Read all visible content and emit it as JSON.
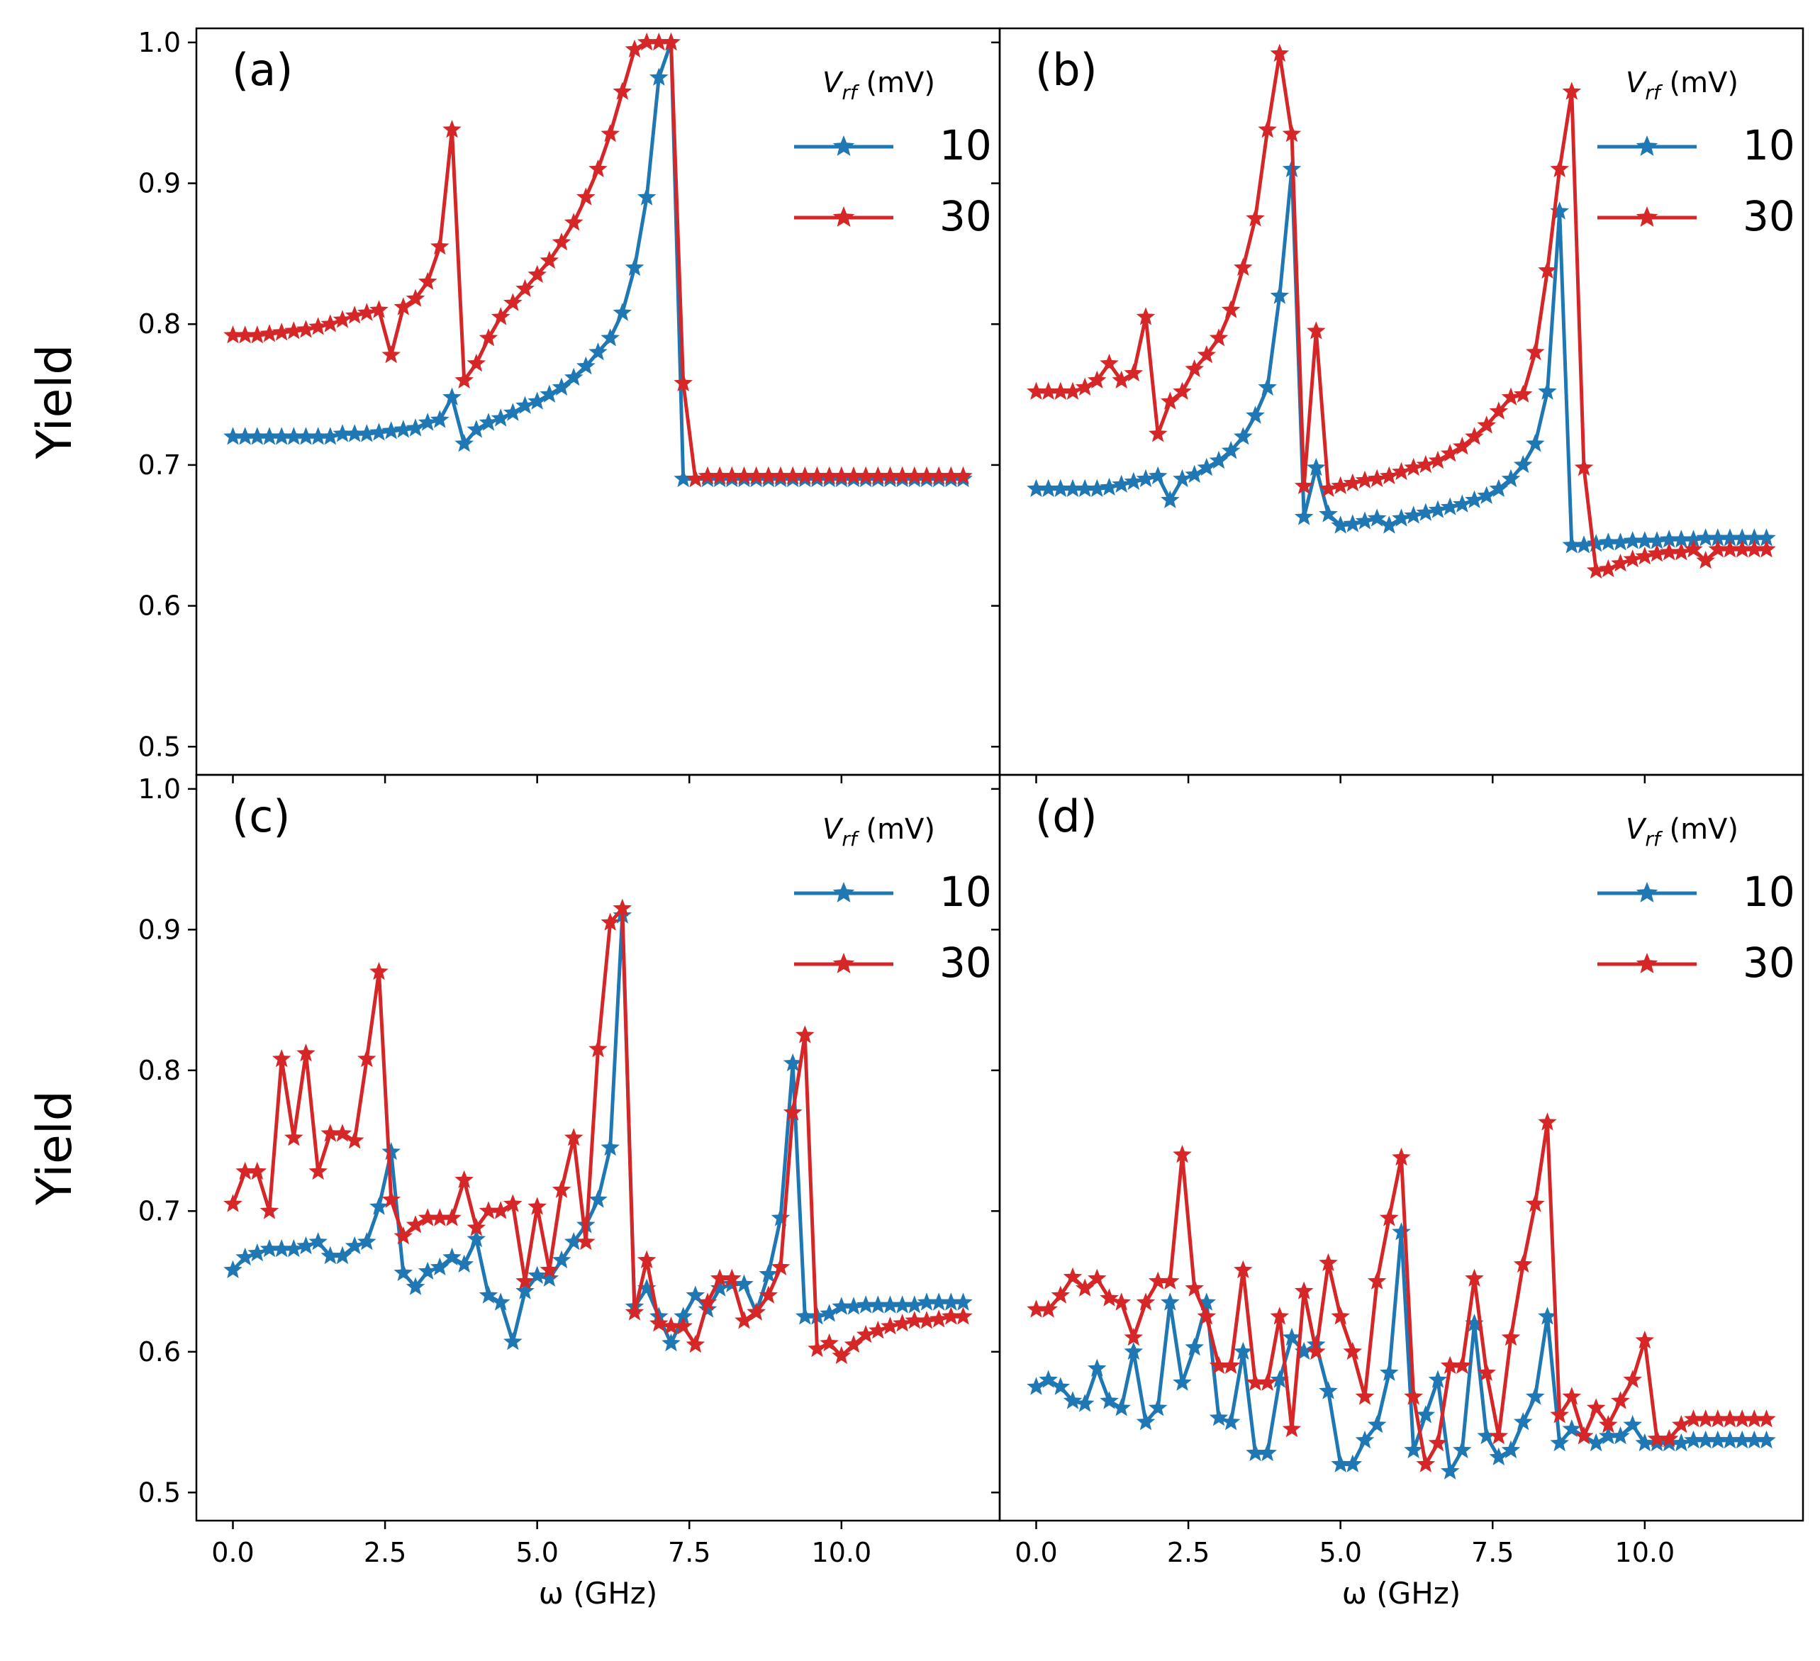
{
  "chart_data": {
    "type": "line",
    "xlabel": "ω (GHz)",
    "ylabel": "Yield",
    "xlim": [
      -0.6,
      12.6
    ],
    "ylim": [
      0.48,
      1.01
    ],
    "xticks": [
      "0.0",
      "2.5",
      "5.0",
      "7.5",
      "10.0"
    ],
    "yticks": [
      "0.5",
      "0.6",
      "0.7",
      "0.8",
      "0.9",
      "1.0"
    ],
    "legend_title_main": "V",
    "legend_title_sub": "rf",
    "legend_title_unit": "(mV)",
    "colors": {
      "10": "#1f77b4",
      "30": "#d62728"
    },
    "panels": [
      {
        "label": "(a)",
        "series": [
          {
            "name": "10",
            "color": "#1f77b4",
            "values": [
              0.72,
              0.72,
              0.72,
              0.72,
              0.72,
              0.72,
              0.72,
              0.72,
              0.72,
              0.722,
              0.722,
              0.722,
              0.723,
              0.724,
              0.725,
              0.726,
              0.73,
              0.732,
              0.748,
              0.715,
              0.725,
              0.73,
              0.733,
              0.737,
              0.742,
              0.745,
              0.75,
              0.755,
              0.762,
              0.77,
              0.78,
              0.79,
              0.808,
              0.84,
              0.89,
              0.975,
              1.0,
              0.69,
              0.69,
              0.69,
              0.69,
              0.69,
              0.69,
              0.69,
              0.69,
              0.69,
              0.69,
              0.69,
              0.69,
              0.69,
              0.69,
              0.69,
              0.69,
              0.69,
              0.69,
              0.69,
              0.69,
              0.69,
              0.69,
              0.69,
              0.69
            ]
          },
          {
            "name": "30",
            "color": "#d62728",
            "values": [
              0.792,
              0.792,
              0.792,
              0.793,
              0.794,
              0.795,
              0.796,
              0.798,
              0.8,
              0.803,
              0.806,
              0.808,
              0.81,
              0.778,
              0.812,
              0.818,
              0.83,
              0.855,
              0.938,
              0.76,
              0.772,
              0.79,
              0.805,
              0.815,
              0.825,
              0.835,
              0.845,
              0.858,
              0.872,
              0.89,
              0.91,
              0.935,
              0.965,
              0.995,
              1.0,
              1.0,
              1.0,
              0.758,
              0.69,
              0.692,
              0.692,
              0.692,
              0.692,
              0.692,
              0.692,
              0.692,
              0.692,
              0.692,
              0.692,
              0.692,
              0.692,
              0.692,
              0.692,
              0.692,
              0.692,
              0.692,
              0.692,
              0.692,
              0.692,
              0.692,
              0.692
            ]
          }
        ]
      },
      {
        "label": "(b)",
        "series": [
          {
            "name": "10",
            "color": "#1f77b4",
            "values": [
              0.683,
              0.683,
              0.683,
              0.683,
              0.683,
              0.683,
              0.684,
              0.686,
              0.688,
              0.69,
              0.692,
              0.675,
              0.69,
              0.693,
              0.698,
              0.703,
              0.71,
              0.72,
              0.735,
              0.755,
              0.82,
              0.91,
              0.663,
              0.698,
              0.665,
              0.657,
              0.658,
              0.66,
              0.662,
              0.657,
              0.662,
              0.664,
              0.666,
              0.668,
              0.67,
              0.672,
              0.675,
              0.678,
              0.683,
              0.69,
              0.7,
              0.715,
              0.752,
              0.88,
              0.643,
              0.643,
              0.644,
              0.645,
              0.645,
              0.646,
              0.646,
              0.646,
              0.647,
              0.647,
              0.647,
              0.648,
              0.648,
              0.648,
              0.648,
              0.648,
              0.648
            ]
          },
          {
            "name": "30",
            "color": "#d62728",
            "values": [
              0.752,
              0.752,
              0.752,
              0.752,
              0.755,
              0.76,
              0.772,
              0.76,
              0.765,
              0.805,
              0.722,
              0.745,
              0.752,
              0.768,
              0.778,
              0.79,
              0.81,
              0.84,
              0.875,
              0.938,
              0.992,
              0.935,
              0.685,
              0.795,
              0.683,
              0.685,
              0.687,
              0.689,
              0.69,
              0.692,
              0.695,
              0.698,
              0.7,
              0.703,
              0.708,
              0.713,
              0.72,
              0.728,
              0.738,
              0.748,
              0.75,
              0.78,
              0.838,
              0.91,
              0.965,
              0.698,
              0.625,
              0.626,
              0.63,
              0.633,
              0.635,
              0.637,
              0.638,
              0.638,
              0.64,
              0.632,
              0.64,
              0.64,
              0.64,
              0.64,
              0.64
            ]
          }
        ]
      },
      {
        "label": "(c)",
        "series": [
          {
            "name": "10",
            "color": "#1f77b4",
            "values": [
              0.658,
              0.667,
              0.67,
              0.673,
              0.673,
              0.673,
              0.675,
              0.678,
              0.668,
              0.668,
              0.675,
              0.678,
              0.703,
              0.742,
              0.656,
              0.646,
              0.657,
              0.66,
              0.667,
              0.662,
              0.68,
              0.64,
              0.635,
              0.607,
              0.643,
              0.654,
              0.652,
              0.665,
              0.678,
              0.69,
              0.708,
              0.745,
              0.91,
              0.632,
              0.645,
              0.625,
              0.606,
              0.625,
              0.64,
              0.63,
              0.645,
              0.648,
              0.648,
              0.628,
              0.655,
              0.695,
              0.805,
              0.625,
              0.625,
              0.627,
              0.632,
              0.632,
              0.633,
              0.633,
              0.633,
              0.633,
              0.633,
              0.635,
              0.635,
              0.635,
              0.635
            ]
          },
          {
            "name": "30",
            "color": "#d62728",
            "values": [
              0.705,
              0.728,
              0.728,
              0.7,
              0.808,
              0.752,
              0.812,
              0.728,
              0.755,
              0.755,
              0.75,
              0.808,
              0.87,
              0.708,
              0.682,
              0.69,
              0.695,
              0.695,
              0.695,
              0.722,
              0.688,
              0.7,
              0.7,
              0.705,
              0.65,
              0.703,
              0.658,
              0.715,
              0.752,
              0.678,
              0.815,
              0.905,
              0.915,
              0.628,
              0.665,
              0.62,
              0.618,
              0.618,
              0.605,
              0.635,
              0.652,
              0.652,
              0.622,
              0.628,
              0.64,
              0.66,
              0.77,
              0.825,
              0.602,
              0.606,
              0.597,
              0.605,
              0.612,
              0.615,
              0.618,
              0.62,
              0.622,
              0.622,
              0.623,
              0.625,
              0.625
            ]
          }
        ]
      },
      {
        "label": "(d)",
        "series": [
          {
            "name": "10",
            "color": "#1f77b4",
            "values": [
              0.575,
              0.58,
              0.575,
              0.565,
              0.563,
              0.588,
              0.565,
              0.56,
              0.6,
              0.55,
              0.56,
              0.635,
              0.578,
              0.603,
              0.635,
              0.553,
              0.55,
              0.6,
              0.528,
              0.528,
              0.58,
              0.61,
              0.6,
              0.605,
              0.572,
              0.52,
              0.52,
              0.537,
              0.548,
              0.585,
              0.685,
              0.53,
              0.555,
              0.58,
              0.515,
              0.53,
              0.62,
              0.54,
              0.525,
              0.53,
              0.55,
              0.568,
              0.625,
              0.535,
              0.545,
              0.54,
              0.535,
              0.54,
              0.54,
              0.548,
              0.535,
              0.535,
              0.535,
              0.535,
              0.537,
              0.537,
              0.537,
              0.537,
              0.537,
              0.537,
              0.537
            ]
          },
          {
            "name": "30",
            "color": "#d62728",
            "values": [
              0.63,
              0.63,
              0.64,
              0.653,
              0.645,
              0.652,
              0.638,
              0.635,
              0.61,
              0.635,
              0.65,
              0.65,
              0.74,
              0.645,
              0.625,
              0.59,
              0.59,
              0.658,
              0.578,
              0.578,
              0.625,
              0.545,
              0.643,
              0.6,
              0.663,
              0.625,
              0.6,
              0.568,
              0.65,
              0.695,
              0.738,
              0.568,
              0.52,
              0.535,
              0.59,
              0.59,
              0.652,
              0.585,
              0.54,
              0.61,
              0.662,
              0.705,
              0.763,
              0.555,
              0.568,
              0.54,
              0.56,
              0.548,
              0.565,
              0.58,
              0.608,
              0.538,
              0.538,
              0.548,
              0.552,
              0.552,
              0.552,
              0.552,
              0.552,
              0.552,
              0.552
            ]
          }
        ]
      }
    ]
  }
}
